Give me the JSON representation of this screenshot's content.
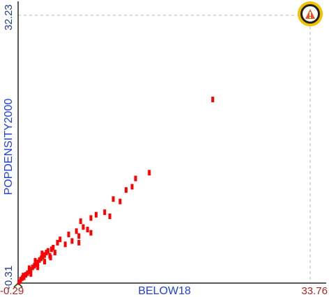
{
  "chart_data": {
    "type": "scatter",
    "title": "",
    "xlabel": "BELOW18",
    "ylabel": "POPDENSITY2000",
    "xlim": [
      -0.29,
      33.76
    ],
    "ylim": [
      -0.31,
      32.23
    ],
    "x_tick_labels": [
      "-0.29",
      "33.76"
    ],
    "y_tick_labels": [
      "-0.31",
      "32.23"
    ],
    "point_color": "#ff0000",
    "grid": false,
    "points": [
      [
        -0.2,
        -0.2
      ],
      [
        0.0,
        0.1
      ],
      [
        0.2,
        0.3
      ],
      [
        0.4,
        0.4
      ],
      [
        0.3,
        0.6
      ],
      [
        0.6,
        0.7
      ],
      [
        0.8,
        0.9
      ],
      [
        1.0,
        1.1
      ],
      [
        1.2,
        1.3
      ],
      [
        1.0,
        1.5
      ],
      [
        1.4,
        1.6
      ],
      [
        1.6,
        1.8
      ],
      [
        1.8,
        2.0
      ],
      [
        2.0,
        2.2
      ],
      [
        1.7,
        2.4
      ],
      [
        2.2,
        2.5
      ],
      [
        2.4,
        2.7
      ],
      [
        2.6,
        2.9
      ],
      [
        2.8,
        3.1
      ],
      [
        2.5,
        3.3
      ],
      [
        3.0,
        3.4
      ],
      [
        3.2,
        3.6
      ],
      [
        3.4,
        3.0
      ],
      [
        3.6,
        3.8
      ],
      [
        3.8,
        4.0
      ],
      [
        2.0,
        1.6
      ],
      [
        1.2,
        0.8
      ],
      [
        2.8,
        2.3
      ],
      [
        3.5,
        2.8
      ],
      [
        4.0,
        3.4
      ],
      [
        4.3,
        4.6
      ],
      [
        4.6,
        5.0
      ],
      [
        5.2,
        4.4
      ],
      [
        5.6,
        5.6
      ],
      [
        6.0,
        4.8
      ],
      [
        6.5,
        6.0
      ],
      [
        6.8,
        5.4
      ],
      [
        7.3,
        6.5
      ],
      [
        7.0,
        7.2
      ],
      [
        7.8,
        6.2
      ],
      [
        8.2,
        7.6
      ],
      [
        8.8,
        8.0
      ],
      [
        8.2,
        5.8
      ],
      [
        6.8,
        4.6
      ],
      [
        9.8,
        8.3
      ],
      [
        10.4,
        7.8
      ],
      [
        10.8,
        9.9
      ],
      [
        11.6,
        9.6
      ],
      [
        12.3,
        11.0
      ],
      [
        13.0,
        11.4
      ],
      [
        13.4,
        12.4
      ],
      [
        15.0,
        13.1
      ],
      [
        22.4,
        22.0
      ]
    ]
  },
  "badge": {
    "icon": "layer-warning-icon",
    "ring_color": "#f2c200",
    "glyph_color": "#e8541a"
  }
}
